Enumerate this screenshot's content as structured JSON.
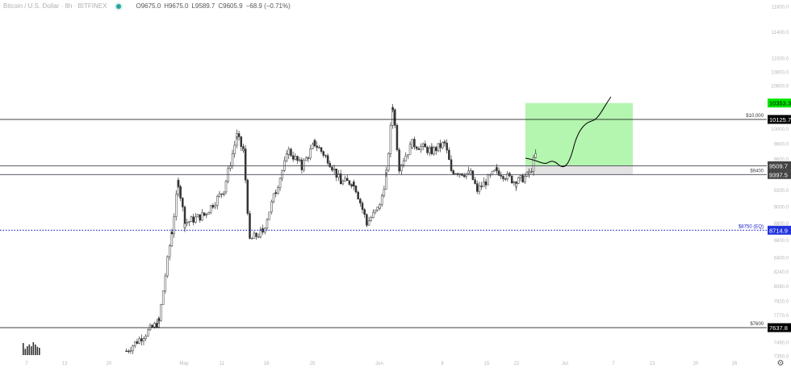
{
  "header": {
    "symbol": "Bitcoin / U.S. Dollar · 8h · BITFINEX",
    "open": "O9675.0",
    "high": "H9675.0",
    "low": "L9589.7",
    "close": "C9605.9",
    "change": "−68.9 (−0.71%)"
  },
  "chart_data": {
    "type": "candlestick",
    "scale": "log",
    "ylim": [
      7350,
      11800
    ],
    "y_ticks": [
      "11800.0",
      "11400.0",
      "11000.0",
      "10800.0",
      "10600.0",
      "10000.0",
      "9800.0",
      "9600.0",
      "9200.0",
      "9000.0",
      "8800.0",
      "8600.0",
      "8400.0",
      "8240.0",
      "8080.0",
      "7920.0",
      "7770.0",
      "7490.0",
      "7350.0"
    ],
    "x_ticks": [
      "7",
      "13",
      "20",
      "May",
      "11",
      "18",
      "25",
      "Jun",
      "8",
      "15",
      "22",
      "Jul",
      "7",
      "13",
      "20",
      "26"
    ],
    "price_path": [
      [
        "Apr 22",
        7400
      ],
      [
        "Apr 27",
        7700
      ],
      [
        "Apr 29",
        8700
      ],
      [
        "Apr 30",
        9300
      ],
      [
        "May 1",
        8800
      ],
      [
        "May 4",
        8900
      ],
      [
        "May 7",
        9200
      ],
      [
        "May 9",
        9900
      ],
      [
        "May 10",
        9700
      ],
      [
        "May 11",
        8600
      ],
      [
        "May 13",
        8700
      ],
      [
        "May 15",
        9200
      ],
      [
        "May 17",
        9700
      ],
      [
        "May 19",
        9500
      ],
      [
        "May 21",
        9800
      ],
      [
        "May 23",
        9600
      ],
      [
        "May 25",
        9300
      ],
      [
        "May 27",
        9300
      ],
      [
        "May 29",
        8800
      ],
      [
        "May 31",
        9000
      ],
      [
        "Jun 1",
        9400
      ],
      [
        "Jun 2",
        10300
      ],
      [
        "Jun 3",
        9500
      ],
      [
        "Jun 5",
        9800
      ],
      [
        "Jun 8",
        9700
      ],
      [
        "Jun 10",
        9800
      ],
      [
        "Jun 11",
        9450
      ],
      [
        "Jun 14",
        9400
      ],
      [
        "Jun 15",
        9200
      ],
      [
        "Jun 18",
        9450
      ],
      [
        "Jun 21",
        9300
      ],
      [
        "Jun 23",
        9400
      ],
      [
        "Jun 24",
        9650
      ]
    ],
    "levels": [
      {
        "label": "$10,000",
        "value": "10125.7",
        "color": "#000000"
      },
      {
        "label": "",
        "value": "9509.7",
        "color": "#434651"
      },
      {
        "label": "$9400",
        "value": "9397.5",
        "color": "#434651"
      },
      {
        "label": "$8750 (EQ)",
        "value": "8714.9",
        "color": "#1e22c8",
        "style": "dotted"
      },
      {
        "label": "$7600",
        "value": "7637.8",
        "color": "#000000"
      }
    ],
    "target": {
      "value": "10353.3",
      "color": "#00e600",
      "zone_top": 10353.3,
      "zone_bottom": 9509.7,
      "stop_bottom": 9397.5
    },
    "colors": {
      "candle": "#333333",
      "target_zone": "#b4f5b0",
      "stop_zone": "#e3e3e3"
    }
  }
}
